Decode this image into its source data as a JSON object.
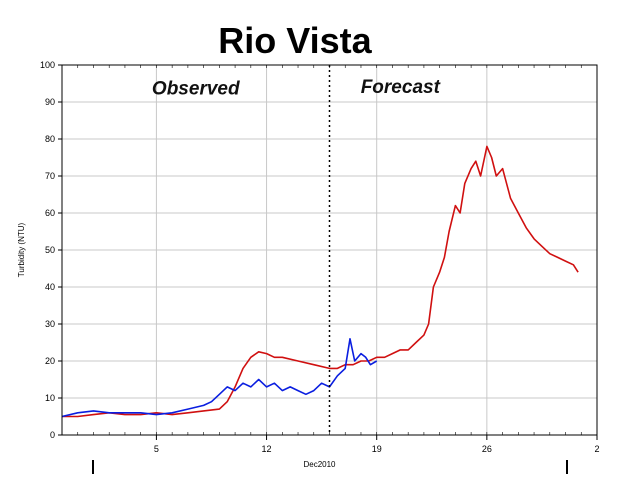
{
  "chart_data": {
    "type": "line",
    "title": "Rio Vista",
    "ylabel": "Turbidity (NTU)",
    "xlabel": "Dec2010",
    "ylim": [
      0,
      100
    ],
    "y_ticks": [
      0,
      10,
      20,
      30,
      40,
      50,
      60,
      70,
      80,
      90,
      100
    ],
    "x_ticks": [
      {
        "day": 5,
        "label": "5"
      },
      {
        "day": 12,
        "label": "12"
      },
      {
        "day": 19,
        "label": "19"
      },
      {
        "day": 26,
        "label": "26"
      },
      {
        "day": 33,
        "label": "2"
      }
    ],
    "xlim": [
      -1,
      33
    ],
    "grid": true,
    "annotations": [
      {
        "text": "Observed",
        "day": 7.5,
        "y": 92
      },
      {
        "text": "Forecast",
        "day": 20.5,
        "y": 92.5
      }
    ],
    "forecast_start_day": 16,
    "series": [
      {
        "color": "#d01010",
        "x": [
          -1,
          0,
          1,
          2,
          3,
          4,
          5,
          6,
          7,
          8,
          9,
          9.5,
          10,
          10.5,
          11,
          11.5,
          12,
          12.5,
          13,
          14,
          15,
          16,
          16.5,
          17,
          17.5,
          18,
          18.5,
          19,
          19.5,
          20,
          20.5,
          21,
          21.5,
          22,
          22.3,
          22.6,
          23,
          23.3,
          23.6,
          24,
          24.3,
          24.6,
          25,
          25.3,
          25.6,
          26,
          26.3,
          26.6,
          27,
          27.5,
          28,
          28.5,
          29,
          29.5,
          30,
          30.5,
          31,
          31.5,
          31.8
        ],
        "values": [
          5,
          5,
          5.5,
          6,
          5.5,
          5.5,
          6,
          5.5,
          6,
          6.5,
          7,
          9,
          13,
          18,
          21,
          22.5,
          22,
          21,
          21,
          20,
          19,
          18,
          18,
          19,
          19,
          20,
          20,
          21,
          21,
          22,
          23,
          23,
          25,
          27,
          30,
          40,
          44,
          48,
          55,
          62,
          60,
          68,
          72,
          74,
          70,
          78,
          75,
          70,
          72,
          64,
          60,
          56,
          53,
          51,
          49,
          48,
          47,
          46,
          44
        ]
      },
      {
        "color": "#0a1ee0",
        "x": [
          -1,
          0,
          1,
          2,
          3,
          4,
          5,
          6,
          7,
          8,
          8.5,
          9,
          9.5,
          10,
          10.5,
          11,
          11.5,
          12,
          12.5,
          13,
          13.5,
          14,
          14.5,
          15,
          15.5,
          16,
          16.5,
          17,
          17.3,
          17.6,
          18,
          18.3,
          18.6,
          19
        ],
        "values": [
          5,
          6,
          6.5,
          6,
          6,
          6,
          5.5,
          6,
          7,
          8,
          9,
          11,
          13,
          12,
          14,
          13,
          15,
          13,
          14,
          12,
          13,
          12,
          11,
          12,
          14,
          13,
          16,
          18,
          26,
          20,
          22,
          21,
          19,
          20
        ]
      }
    ]
  }
}
